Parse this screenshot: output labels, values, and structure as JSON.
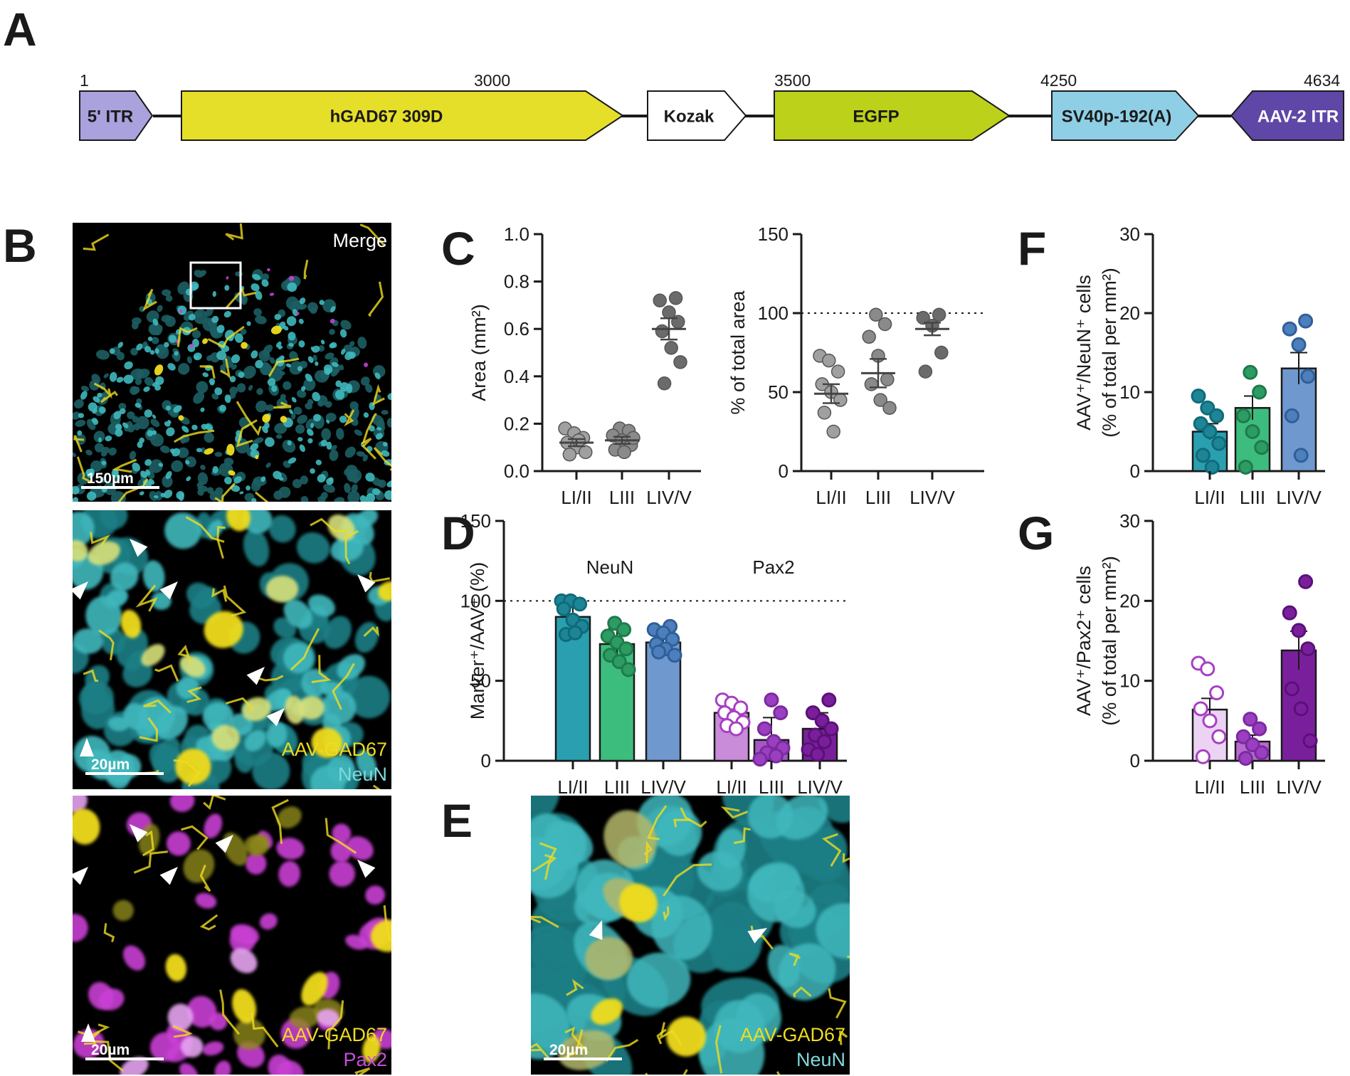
{
  "panel_labels": {
    "A": "A",
    "B": "B",
    "C": "C",
    "D": "D",
    "E": "E",
    "F": "F",
    "G": "G"
  },
  "construct": {
    "positions": [
      "1",
      "3000",
      "3500",
      "4250",
      "4634"
    ],
    "elements": [
      {
        "name": "5' ITR",
        "color": "#a9a2dd",
        "text_color": "#1a1a1a"
      },
      {
        "name": "hGAD67 309D",
        "color": "#e6df2a",
        "text_color": "#1a1a1a"
      },
      {
        "name": "Kozak",
        "color": "#ffffff",
        "text_color": "#1a1a1a"
      },
      {
        "name": "EGFP",
        "color": "#bcd21a",
        "text_color": "#1a1a1a"
      },
      {
        "name": "SV40p-192(A)",
        "color": "#8ecfe6",
        "text_color": "#1a1a1a"
      },
      {
        "name": "AAV-2 ITR",
        "color": "#5e47a6",
        "text_color": "#ffffff"
      }
    ]
  },
  "micrographs": {
    "merge": {
      "label": "Merge",
      "scale": "150µm"
    },
    "neun": {
      "label1": "AAV-GAD67",
      "label2": "NeuN",
      "scale": "20µm"
    },
    "pax2": {
      "label1": "AAV-GAD67",
      "label2": "Pax2",
      "scale": "20µm"
    },
    "e": {
      "label1": "AAV-GAD67",
      "label2": "NeuN",
      "scale": "20µm"
    },
    "colors": {
      "cyan": "#3fb8bd",
      "yellow": "#f0dc1e",
      "magenta": "#c93fd4",
      "label_yellow": "#f0dc1e",
      "label_cyan": "#7fd9dc",
      "label_magenta": "#c84fd8"
    }
  },
  "chart_data": [
    {
      "id": "C-left",
      "type": "scatter",
      "ylabel": "Area (mm²)",
      "ylim": [
        0,
        1.0
      ],
      "yticks": [
        "0.0",
        "0.2",
        "0.4",
        "0.6",
        "0.8",
        "1.0"
      ],
      "ytick_values": [
        0,
        0.2,
        0.4,
        0.6,
        0.8,
        1.0
      ],
      "categories": [
        "LI/II",
        "LIII",
        "LIV/V"
      ],
      "means": [
        0.12,
        0.13,
        0.6
      ],
      "sem": [
        0.015,
        0.015,
        0.045
      ],
      "points": [
        [
          0.18,
          0.16,
          0.14,
          0.12,
          0.1,
          0.08,
          0.07,
          0.13
        ],
        [
          0.18,
          0.17,
          0.15,
          0.13,
          0.11,
          0.09,
          0.08,
          0.14
        ],
        [
          0.73,
          0.72,
          0.67,
          0.63,
          0.59,
          0.52,
          0.46,
          0.37
        ]
      ],
      "fills": [
        "#a0a0a0",
        "#8a8a8a",
        "#6b6b6b"
      ]
    },
    {
      "id": "C-right",
      "type": "scatter",
      "ylabel": "% of total area",
      "ylim": [
        0,
        150
      ],
      "yticks": [
        "0",
        "50",
        "100",
        "150"
      ],
      "ytick_values": [
        0,
        50,
        100,
        150
      ],
      "ref_line": 100,
      "categories": [
        "LI/II",
        "LIII",
        "LIV/V"
      ],
      "means": [
        49,
        62,
        90
      ],
      "sem": [
        6,
        9,
        4
      ],
      "points": [
        [
          73,
          70,
          63,
          55,
          50,
          45,
          37,
          25
        ],
        [
          99,
          93,
          85,
          73,
          58,
          55,
          45,
          40
        ],
        [
          99,
          97,
          92,
          75,
          63
        ]
      ],
      "fills": [
        "#a0a0a0",
        "#8a8a8a",
        "#6b6b6b"
      ]
    },
    {
      "id": "D",
      "type": "bar",
      "ylabel": "Marker⁺/AAV⁺ (%)",
      "ylim": [
        0,
        150
      ],
      "yticks": [
        "0",
        "50",
        "100",
        "150"
      ],
      "ytick_values": [
        0,
        50,
        100,
        150
      ],
      "ref_line": 100,
      "group_labels": [
        "NeuN",
        "Pax2"
      ],
      "categories": [
        "LI/II",
        "LIII",
        "LIV/V",
        "LI/II",
        "LIII",
        "LIV/V"
      ],
      "values": [
        90,
        73,
        74,
        30,
        13,
        20
      ],
      "err": [
        8,
        10,
        6,
        7,
        14,
        10
      ],
      "points": [
        [
          100,
          100,
          98,
          95,
          88,
          84,
          79,
          80
        ],
        [
          86,
          82,
          78,
          74,
          70,
          66,
          62,
          57
        ],
        [
          84,
          82,
          80,
          76,
          73,
          70,
          66,
          68
        ],
        [
          38,
          36,
          33,
          30,
          27,
          24,
          22,
          20
        ],
        [
          38,
          30,
          20,
          12,
          8,
          5,
          3,
          1
        ],
        [
          38,
          30,
          25,
          20,
          16,
          12,
          7,
          4
        ]
      ],
      "colors": [
        "#2a9fb0",
        "#3dbd7d",
        "#6f98cf",
        "#c88cd9",
        "#a457c5",
        "#7a1f9c"
      ],
      "point_fill": [
        "#1e8597",
        "#2c9c63",
        "#4d7fbd",
        "#ffffff",
        "#9a3fbf",
        "#7a1f9c"
      ],
      "point_stroke": [
        "#0f6b79",
        "#1f7a4c",
        "#2f5f98",
        "#a83fc4",
        "#7a2a9f",
        "#5a1078"
      ]
    },
    {
      "id": "F",
      "type": "bar",
      "ylabel": "AAV⁺/NeuN⁺ cells",
      "ylabel2": "(% of total per mm²)",
      "ylim": [
        0,
        30
      ],
      "yticks": [
        "0",
        "10",
        "20",
        "30"
      ],
      "ytick_values": [
        0,
        10,
        20,
        30
      ],
      "categories": [
        "LI/II",
        "LIII",
        "LIV/V"
      ],
      "values": [
        5,
        8,
        13
      ],
      "err": [
        1,
        1.5,
        2
      ],
      "points": [
        [
          9.5,
          8,
          7,
          6,
          5,
          3.5,
          2,
          0.5
        ],
        [
          12.5,
          10,
          7,
          5,
          3,
          0.5
        ],
        [
          19,
          18,
          16,
          12,
          7,
          2
        ]
      ],
      "colors": [
        "#2a9fb0",
        "#3dbd7d",
        "#6f98cf"
      ],
      "point_fill": [
        "#1e8597",
        "#2c9c63",
        "#4d7fbd"
      ],
      "point_stroke": [
        "#0f6b79",
        "#1f7a4c",
        "#2f5f98"
      ]
    },
    {
      "id": "G",
      "type": "bar",
      "ylabel": "AAV⁺/Pax2⁺ cells",
      "ylabel2": "(% of total per mm²)",
      "ylim": [
        0,
        30
      ],
      "yticks": [
        "0",
        "10",
        "20",
        "30"
      ],
      "ytick_values": [
        0,
        10,
        20,
        30
      ],
      "categories": [
        "LI/II",
        "LIII",
        "LIV/V"
      ],
      "values": [
        6.4,
        2.4,
        13.8
      ],
      "err": [
        1.4,
        0.8,
        2.4
      ],
      "points": [
        [
          12.2,
          11.5,
          8.5,
          6.5,
          5,
          3,
          0.5
        ],
        [
          5.2,
          4,
          3,
          2,
          1,
          0.3
        ],
        [
          22.4,
          18.5,
          16.3,
          14,
          9,
          6.5,
          2.5
        ]
      ],
      "colors": [
        "#ecd3f3",
        "#b66ccc",
        "#7a1f9c"
      ],
      "point_fill": [
        "#ffffff",
        "#9a3fbf",
        "#7a1f9c"
      ],
      "point_stroke": [
        "#a83fc4",
        "#7a2a9f",
        "#5a1078"
      ]
    }
  ]
}
